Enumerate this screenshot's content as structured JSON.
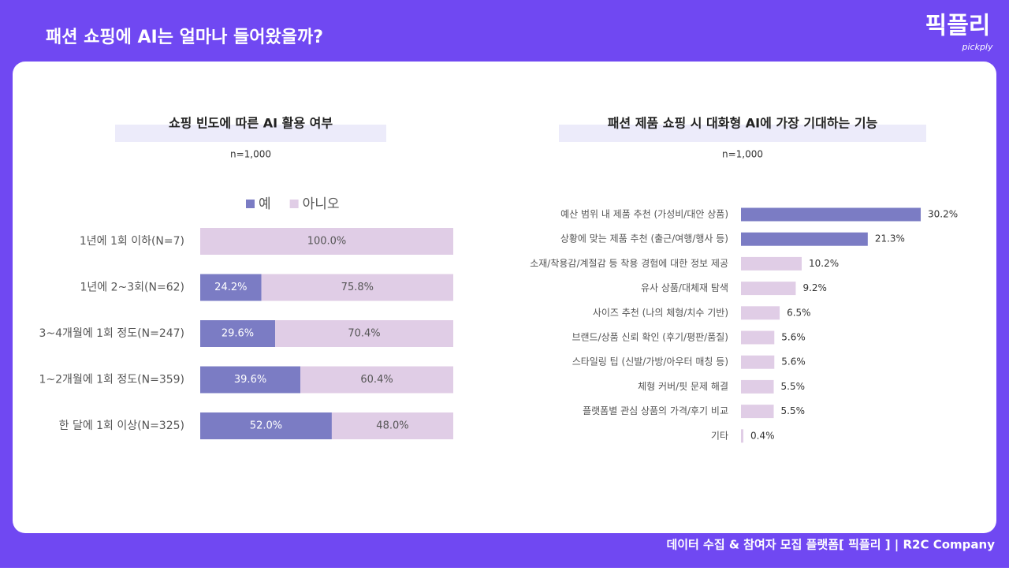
{
  "header": {
    "title": "패션 쇼핑에 AI는 얼마나 들어왔을까?",
    "logo": "픽플리",
    "logo_sub": "pickply"
  },
  "footer": "데이터 수집 & 참여자 모집 플랫폼[ 픽플리 ]  |  R2C Company",
  "chart_data": [
    {
      "type": "stacked-bar",
      "title": "쇼핑 빈도에 따른 AI 활용 여부",
      "subtitle": "n=1,000",
      "categories": [
        "1년에 1회 이하(N=7)",
        "1년에 2~3회(N=62)",
        "3~4개월에 1회 정도(N=247)",
        "1~2개월에 1회 정도(N=359)",
        "한 달에 1회 이상(N=325)"
      ],
      "series": [
        {
          "name": "예",
          "color": "#7b7cc4",
          "values": [
            0,
            24.2,
            29.6,
            39.6,
            52.0
          ],
          "value_labels": [
            null,
            "24.2%",
            "29.6%",
            "39.6%",
            "52.0%"
          ]
        },
        {
          "name": "아니오",
          "color": "#e0cde6",
          "values": [
            100.0,
            75.8,
            70.4,
            60.4,
            48.0
          ],
          "value_labels": [
            "100.0%",
            "75.8%",
            "70.4%",
            "60.4%",
            "48.0%"
          ]
        }
      ]
    },
    {
      "type": "hbar",
      "title": "패션 제품 쇼핑 시 대화형 AI에 가장 기대하는 기능",
      "subtitle": "n=1,000",
      "categories": [
        "예산 범위 내 제품 추천 (가성비/대안 상품)",
        "상황에 맞는 제품 추천 (출근/여행/행사 등)",
        "소재/착용감/계절감 등 착용 경험에 대한 정보 제공",
        "유사 상품/대체재 탐색",
        "사이즈 추천 (나의 체형/치수 기반)",
        "브랜드/상품 신뢰 확인 (후기/평판/품질)",
        "스타일링 팁 (신발/가방/아우터 매칭 등)",
        "체형 커버/핏 문제 해결",
        "플랫폼별 관심 상품의 가격/후기 비교",
        "기타"
      ],
      "values": [
        30.2,
        21.3,
        10.2,
        9.2,
        6.5,
        5.6,
        5.6,
        5.5,
        5.5,
        0.4
      ],
      "value_labels": [
        "30.2%",
        "21.3%",
        "10.2%",
        "9.2%",
        "6.5%",
        "5.6%",
        "5.6%",
        "5.5%",
        "5.5%",
        "0.4%"
      ],
      "colors": [
        "#7b7cc4",
        "#7b7cc4",
        "#e0cde6",
        "#e0cde6",
        "#e0cde6",
        "#e0cde6",
        "#e0cde6",
        "#e0cde6",
        "#e0cde6",
        "#e0cde6"
      ]
    }
  ]
}
